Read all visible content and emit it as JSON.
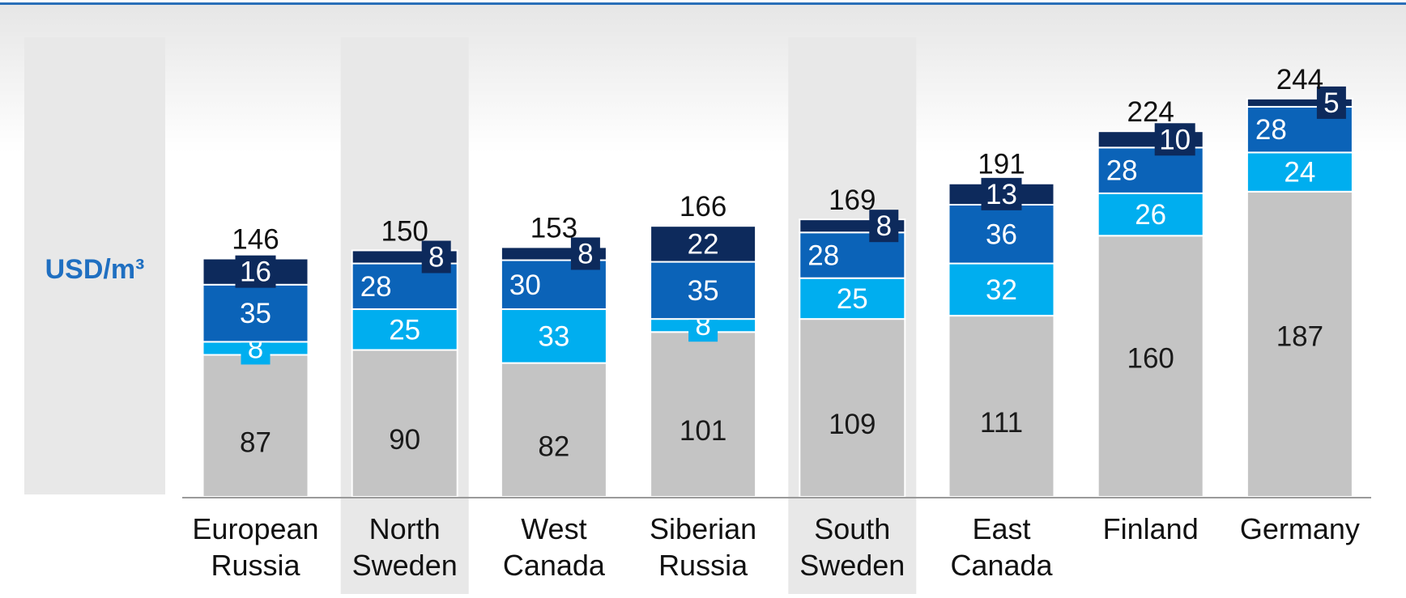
{
  "colors": {
    "top_rule": "#2a6fb8",
    "unit_label": "#1f6fc1",
    "base": "#c4c4c4",
    "light_blue": "#00aeef",
    "mid_blue": "#0b63b8",
    "dark_navy": "#0d2a5c",
    "highlight_band": "#e8e8e8",
    "axis": "#9a9a9a"
  },
  "unit_label": "USD/m³",
  "chart_data": {
    "type": "bar",
    "stacked": true,
    "ylim": [
      0,
      260
    ],
    "categories": [
      [
        "European",
        "Russia"
      ],
      [
        "North",
        "Sweden"
      ],
      [
        "West",
        "Canada"
      ],
      [
        "Siberian",
        "Russia"
      ],
      [
        "South",
        "Sweden"
      ],
      [
        "East",
        "Canada"
      ],
      [
        "Finland"
      ],
      [
        "Germany"
      ]
    ],
    "highlighted_categories": [
      1,
      4
    ],
    "series": [
      {
        "color": "base",
        "values": [
          87,
          90,
          82,
          101,
          109,
          111,
          160,
          187
        ]
      },
      {
        "color": "light_blue",
        "values": [
          8,
          25,
          33,
          8,
          25,
          32,
          26,
          24
        ]
      },
      {
        "color": "mid_blue",
        "values": [
          35,
          28,
          30,
          35,
          28,
          36,
          28,
          28
        ]
      },
      {
        "color": "dark_navy",
        "values": [
          16,
          8,
          8,
          22,
          8,
          13,
          10,
          5
        ]
      }
    ],
    "totals": [
      146,
      150,
      153,
      166,
      169,
      191,
      224,
      244
    ],
    "grid": false,
    "legend": "none"
  }
}
